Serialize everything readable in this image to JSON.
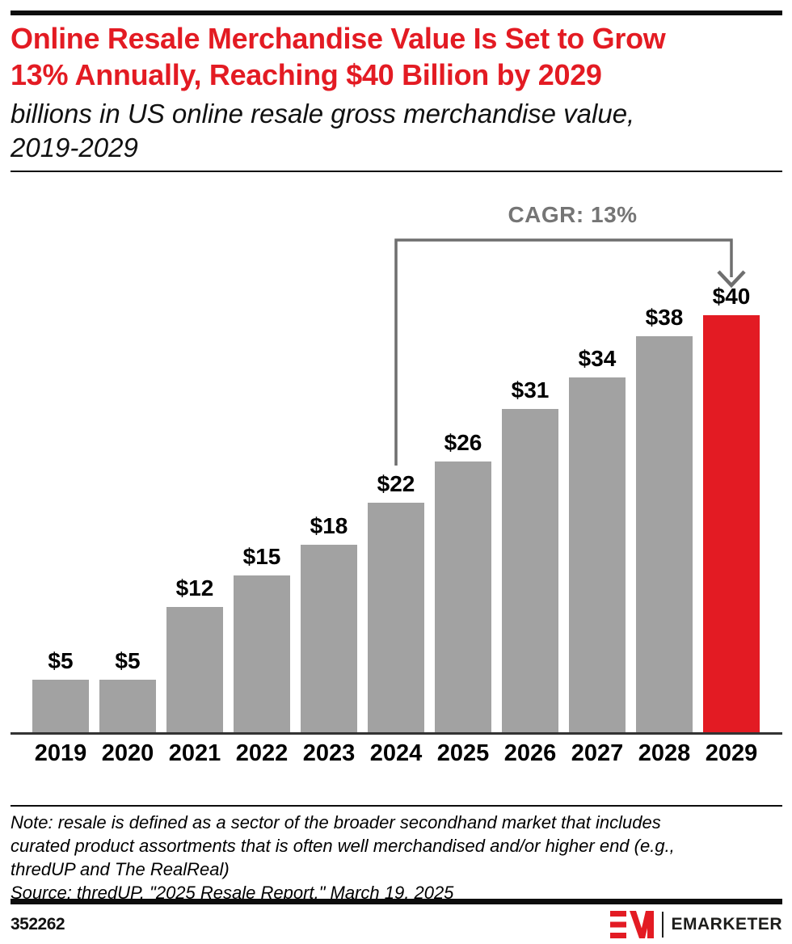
{
  "colors": {
    "accent_red": "#e31b23",
    "bar_gray": "#a2a2a2",
    "bracket_gray": "#6f6f6f"
  },
  "header": {
    "title_line1": "Online Resale Merchandise Value Is Set to Grow",
    "title_line2": "13% Annually, Reaching $40 Billion by 2029",
    "subtitle_line1": "billions in US online resale gross merchandise value,",
    "subtitle_line2": "2019-2029"
  },
  "chart_data": {
    "type": "bar",
    "title": "billions in US online resale gross merchandise value, 2019-2029",
    "categories": [
      "2019",
      "2020",
      "2021",
      "2022",
      "2023",
      "2024",
      "2025",
      "2026",
      "2027",
      "2028",
      "2029"
    ],
    "values": [
      5,
      5,
      12,
      15,
      18,
      22,
      26,
      31,
      34,
      38,
      40
    ],
    "value_prefix": "$",
    "xlabel": "",
    "ylabel": "",
    "ylim": [
      0,
      40
    ],
    "grid": false,
    "legend": "none",
    "highlight_category": "2029",
    "annotation": {
      "label": "CAGR: 13%",
      "from_category": "2024",
      "to_category": "2029"
    }
  },
  "footnote": {
    "note_lines": [
      "Note: resale is defined as a sector of the broader secondhand market that includes",
      "curated product assortments that is often well merchandised and/or higher end (e.g.,",
      "thredUP and The RealReal)",
      "Source: thredUP, \"2025 Resale Report,\" March 19, 2025"
    ]
  },
  "footer": {
    "chart_id": "352262",
    "brand": "EMARKETER"
  }
}
